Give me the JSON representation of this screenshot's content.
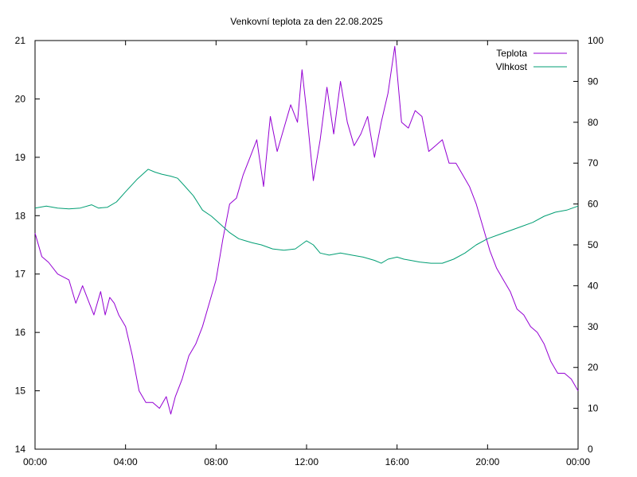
{
  "chart_data": {
    "type": "line",
    "title": "Venkovní teplota za den 22.08.2025",
    "xlabel": "",
    "ylabel": "",
    "y2label": "",
    "x_ticks": [
      "00:00",
      "04:00",
      "08:00",
      "12:00",
      "16:00",
      "20:00",
      "00:00"
    ],
    "xlim_hours": [
      0,
      24
    ],
    "ylim": [
      14,
      21
    ],
    "y_ticks": [
      14,
      15,
      16,
      17,
      18,
      19,
      20,
      21
    ],
    "y2lim": [
      0,
      100
    ],
    "y2_ticks": [
      0,
      10,
      20,
      30,
      40,
      50,
      60,
      70,
      80,
      90,
      100
    ],
    "grid": false,
    "legend_position": "top-right",
    "series": [
      {
        "name": "Teplota",
        "axis": "left",
        "color": "#9400d3",
        "x_hours": [
          0,
          0.3,
          0.6,
          1.0,
          1.5,
          1.8,
          2.1,
          2.4,
          2.6,
          2.9,
          3.1,
          3.3,
          3.5,
          3.7,
          4.0,
          4.3,
          4.6,
          4.9,
          5.2,
          5.5,
          5.8,
          6.0,
          6.2,
          6.5,
          6.8,
          7.1,
          7.4,
          7.7,
          8.0,
          8.3,
          8.6,
          8.9,
          9.2,
          9.5,
          9.8,
          10.1,
          10.4,
          10.7,
          11.0,
          11.3,
          11.6,
          11.8,
          12.0,
          12.3,
          12.6,
          12.9,
          13.2,
          13.5,
          13.8,
          14.1,
          14.4,
          14.7,
          15.0,
          15.3,
          15.6,
          15.9,
          16.2,
          16.5,
          16.8,
          17.1,
          17.4,
          17.7,
          18.0,
          18.3,
          18.6,
          18.9,
          19.2,
          19.5,
          19.8,
          20.1,
          20.4,
          20.7,
          21.0,
          21.3,
          21.6,
          21.9,
          22.2,
          22.5,
          22.8,
          23.1,
          23.4,
          23.7,
          24.0
        ],
        "values": [
          17.7,
          17.3,
          17.2,
          17.0,
          16.9,
          16.5,
          16.8,
          16.5,
          16.3,
          16.7,
          16.3,
          16.6,
          16.5,
          16.3,
          16.1,
          15.6,
          15.0,
          14.8,
          14.8,
          14.7,
          14.9,
          14.6,
          14.9,
          15.2,
          15.6,
          15.8,
          16.1,
          16.5,
          16.9,
          17.6,
          18.2,
          18.3,
          18.7,
          19.0,
          19.3,
          18.5,
          19.7,
          19.1,
          19.5,
          19.9,
          19.6,
          20.5,
          19.8,
          18.6,
          19.3,
          20.2,
          19.4,
          20.3,
          19.6,
          19.2,
          19.4,
          19.7,
          19.0,
          19.6,
          20.1,
          20.9,
          19.6,
          19.5,
          19.8,
          19.7,
          19.1,
          19.2,
          19.3,
          18.9,
          18.9,
          18.7,
          18.5,
          18.2,
          17.8,
          17.4,
          17.1,
          16.9,
          16.7,
          16.4,
          16.3,
          16.1,
          16.0,
          15.8,
          15.5,
          15.3,
          15.3,
          15.2,
          15.0
        ]
      },
      {
        "name": "Vlhkost",
        "axis": "right",
        "color": "#009e73",
        "x_hours": [
          0,
          0.5,
          1.0,
          1.5,
          2.0,
          2.5,
          2.8,
          3.2,
          3.6,
          4.0,
          4.5,
          5.0,
          5.3,
          5.6,
          6.0,
          6.3,
          6.6,
          7.0,
          7.4,
          7.8,
          8.2,
          8.6,
          9.0,
          9.3,
          9.6,
          10.0,
          10.5,
          11.0,
          11.5,
          12.0,
          12.3,
          12.6,
          13.0,
          13.5,
          14.0,
          14.5,
          15.0,
          15.3,
          15.6,
          16.0,
          16.3,
          16.6,
          17.0,
          17.5,
          18.0,
          18.5,
          19.0,
          19.5,
          20.0,
          20.5,
          21.0,
          21.5,
          22.0,
          22.5,
          23.0,
          23.5,
          24.0
        ],
        "values": [
          59,
          59.5,
          59,
          58.8,
          59,
          59.8,
          59,
          59.2,
          60.5,
          63,
          66,
          68.5,
          67.8,
          67.3,
          66.8,
          66.3,
          64.5,
          62,
          58.5,
          57,
          55,
          53,
          51.5,
          51,
          50.5,
          50,
          49,
          48.7,
          49,
          51,
          50,
          48,
          47.5,
          48,
          47.5,
          47,
          46.2,
          45.5,
          46.5,
          47,
          46.5,
          46.2,
          45.8,
          45.5,
          45.5,
          46.5,
          48,
          50,
          51.5,
          52.5,
          53.5,
          54.5,
          55.5,
          57,
          58,
          58.5,
          59.5
        ]
      }
    ]
  }
}
